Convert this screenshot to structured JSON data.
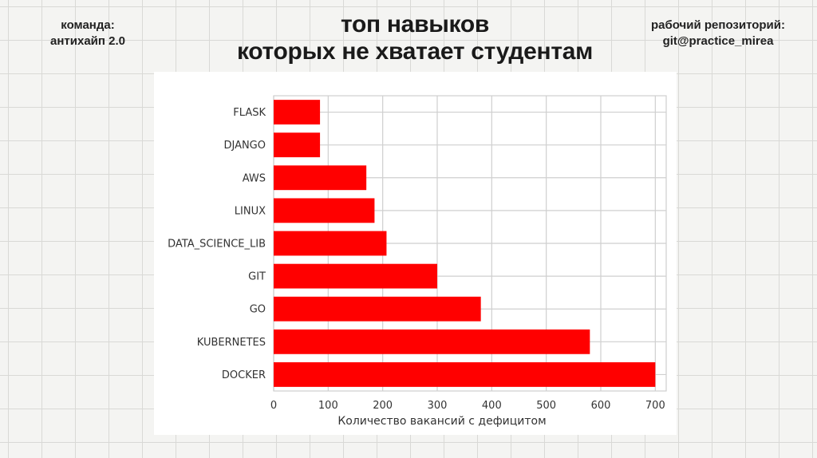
{
  "header": {
    "team_label": "команда:",
    "team_name": "антихайп 2.0",
    "title_line1": "топ навыков",
    "title_line2": "которых не хватает студентам",
    "repo_label": "рабочий репозиторий:",
    "repo_name": "git@practice_mirea"
  },
  "chart_data": {
    "type": "bar",
    "orientation": "horizontal",
    "categories": [
      "FLASK",
      "DJANGO",
      "AWS",
      "LINUX",
      "DATA_SCIENCE_LIB",
      "GIT",
      "GO",
      "KUBERNETES",
      "DOCKER"
    ],
    "values": [
      85,
      85,
      170,
      185,
      207,
      300,
      380,
      580,
      700
    ],
    "title": "",
    "xlabel": "Количество вакансий с дефицитом",
    "ylabel": "",
    "xlim": [
      0,
      720
    ],
    "xticks": [
      0,
      100,
      200,
      300,
      400,
      500,
      600,
      700
    ],
    "grid": true,
    "colors": {
      "bar": "#ff0000",
      "grid": "#cfcfcf",
      "text": "#333333"
    }
  }
}
